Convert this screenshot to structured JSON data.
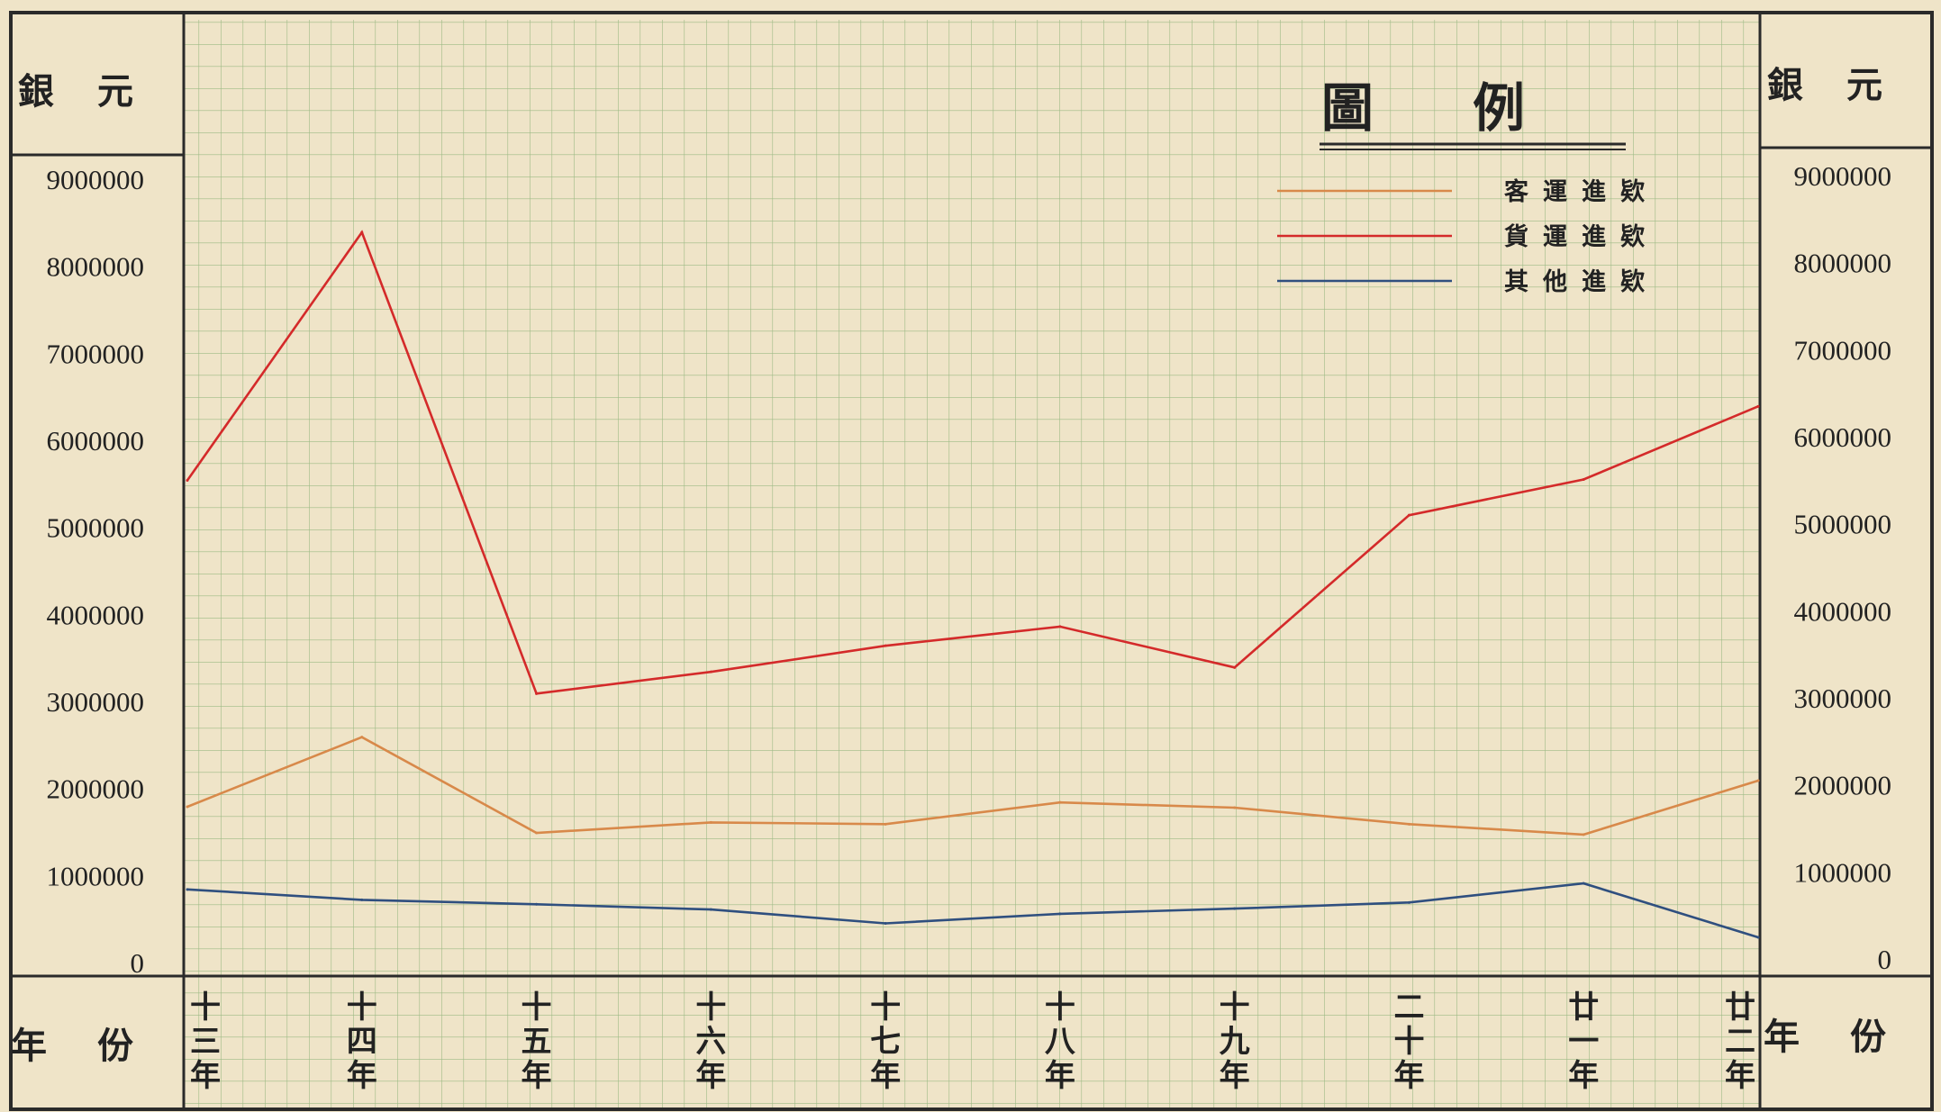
{
  "chart_data": {
    "type": "line",
    "title": "圖例",
    "ylabel_left": "銀元",
    "ylabel_right": "銀元",
    "xlabel_left": "年份",
    "xlabel_right": "年份",
    "categories": [
      "十三年",
      "十四年",
      "十五年",
      "十六年",
      "十七年",
      "十八年",
      "十九年",
      "二十年",
      "廿一年",
      "廿二年"
    ],
    "category_labels_vertical": [
      "十\n三\n年",
      "十\n四\n年",
      "十\n五\n年",
      "十\n六\n年",
      "十\n七\n年",
      "十\n八\n年",
      "十\n九\n年",
      "二\n十\n年",
      "廿\n一\n年",
      "廿\n二\n年"
    ],
    "ylim": [
      0,
      9000000
    ],
    "yticks": [
      "0",
      "1000000",
      "2000000",
      "3000000",
      "4000000",
      "5000000",
      "6000000",
      "7000000",
      "8000000",
      "9000000"
    ],
    "grid": true,
    "legend_position": "top-right",
    "series": [
      {
        "name": "客運進欵",
        "color": "#d8894a",
        "values": [
          1800000,
          2600000,
          1500000,
          1620000,
          1600000,
          1850000,
          1790000,
          1600000,
          1480000,
          2100000
        ]
      },
      {
        "name": "貨運進欵",
        "color": "#d42a2a",
        "values": [
          5550000,
          8400000,
          3100000,
          3350000,
          3650000,
          3870000,
          3400000,
          5150000,
          5560000,
          6400000
        ]
      },
      {
        "name": "其他進欵",
        "color": "#2f4f7f",
        "values": [
          850000,
          730000,
          680000,
          620000,
          460000,
          570000,
          630000,
          700000,
          920000,
          300000
        ]
      }
    ]
  }
}
